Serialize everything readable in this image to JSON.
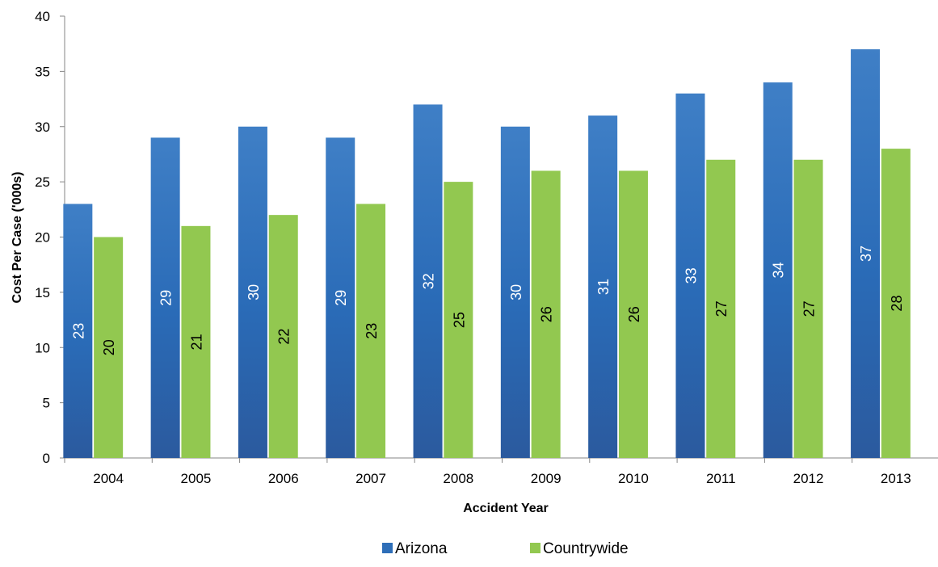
{
  "chart_data": {
    "type": "bar",
    "title": "",
    "xlabel": "Accident Year",
    "ylabel": "Cost Per Case ('000s)",
    "ylim": [
      0,
      40
    ],
    "yticks": [
      0,
      5,
      10,
      15,
      20,
      25,
      30,
      35,
      40
    ],
    "grid": false,
    "legend_position": "bottom",
    "categories": [
      "2004",
      "2005",
      "2006",
      "2007",
      "2008",
      "2009",
      "2010",
      "2011",
      "2012",
      "2013"
    ],
    "series": [
      {
        "name": "Arizona",
        "color": "#2E6EB8",
        "label_color": "#FFFFFF",
        "values": [
          23,
          29,
          30,
          29,
          32,
          30,
          31,
          33,
          34,
          37
        ]
      },
      {
        "name": "Countrywide",
        "color": "#92C850",
        "label_color": "#000000",
        "values": [
          20,
          21,
          22,
          23,
          25,
          26,
          26,
          27,
          27,
          28
        ]
      }
    ]
  }
}
